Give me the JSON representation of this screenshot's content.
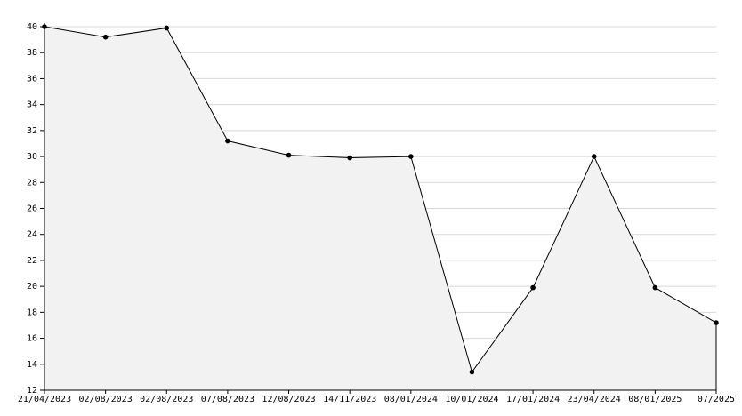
{
  "chart_data": {
    "type": "area",
    "categories": [
      "21/04/2023",
      "02/08/2023",
      "02/08/2023",
      "07/08/2023",
      "12/08/2023",
      "14/11/2023",
      "08/01/2024",
      "10/01/2024",
      "17/01/2024",
      "23/04/2024",
      "08/01/2025",
      "07/2025"
    ],
    "values": [
      40,
      39.2,
      39.9,
      31.2,
      30.1,
      29.9,
      30.0,
      13.4,
      19.9,
      30.0,
      19.9,
      17.2
    ],
    "color": "#000000",
    "fill": "#f2f2f2",
    "ylim": [
      12,
      40
    ],
    "yticks": [
      12,
      14,
      16,
      18,
      20,
      22,
      24,
      26,
      28,
      30,
      32,
      34,
      36,
      38,
      40
    ],
    "grid": true
  }
}
